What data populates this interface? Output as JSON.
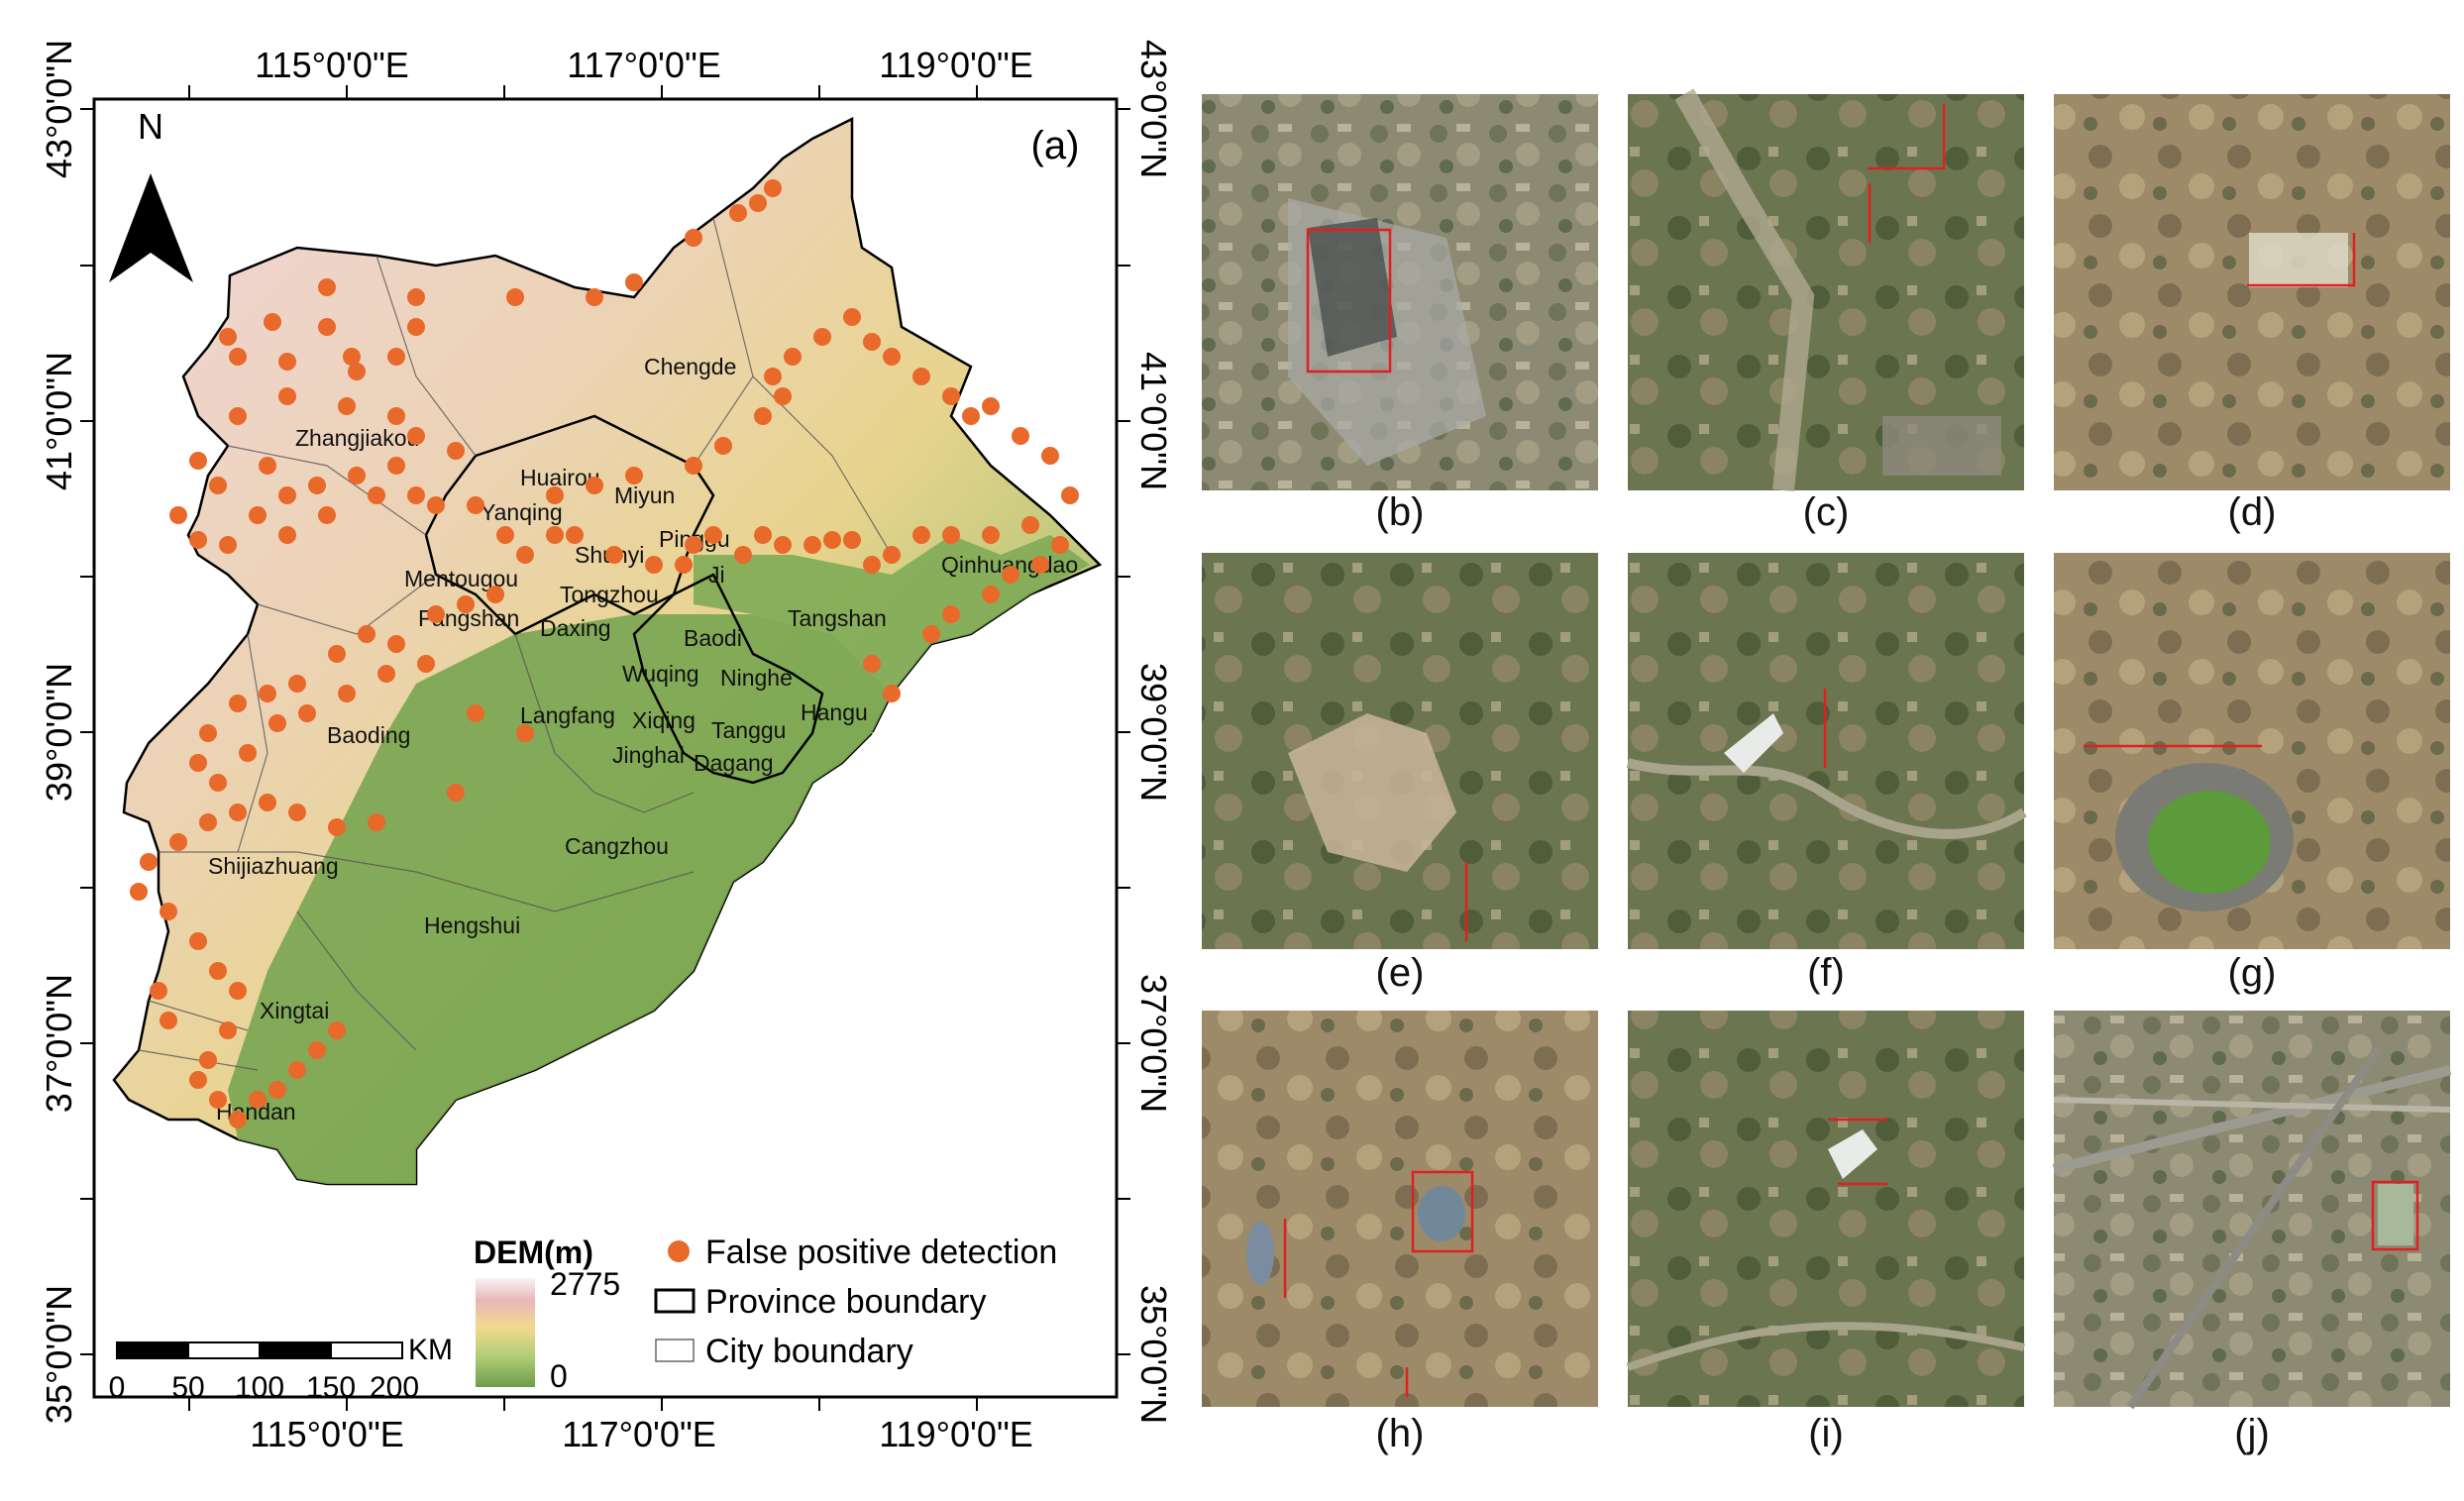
{
  "panel_a": {
    "label": "(a)",
    "north": "N",
    "lon_labels": [
      "115°0'0\"E",
      "117°0'0\"E",
      "119°0'0\"E"
    ],
    "lat_labels": [
      "43°0'0\"N",
      "41°0'0\"N",
      "39°0'0\"N",
      "37°0'0\"N",
      "35°0'0\"N"
    ],
    "cities": [
      "Chengde",
      "Zhangjiakou",
      "Huairou",
      "Miyun",
      "Yanqing",
      "Pinggu",
      "Shunyi",
      "Mentougou",
      "Ji",
      "Tongzhou",
      "Qinhuangdao",
      "Fangshan",
      "Daxing",
      "Tangshan",
      "Baodi",
      "Wuqing",
      "Ninghe",
      "Hangu",
      "Langfang",
      "Xiqing",
      "Tanggu",
      "Baoding",
      "Jinghai",
      "Dagang",
      "Cangzhou",
      "Shijiazhuang",
      "Hengshui",
      "Xingtai",
      "Handan"
    ],
    "legend": {
      "dem_title": "DEM(m)",
      "dem_max": "2775",
      "dem_min": "0",
      "dem_colors": [
        "#fbf1f1",
        "#e8b4b4",
        "#f5d98a",
        "#b6d07a",
        "#6f9e4b"
      ],
      "points_label": "False positive detection",
      "province_label": "Province boundary",
      "city_label": "City boundary",
      "point_color": "#e8692a"
    },
    "scalebar": {
      "unit": "KM",
      "ticks": [
        "0",
        "50",
        "100",
        "150",
        "200"
      ]
    }
  },
  "panels": {
    "captions": [
      "(b)",
      "(c)",
      "(d)",
      "(e)",
      "(f)",
      "(g)",
      "(h)",
      "(i)",
      "(j)"
    ]
  }
}
